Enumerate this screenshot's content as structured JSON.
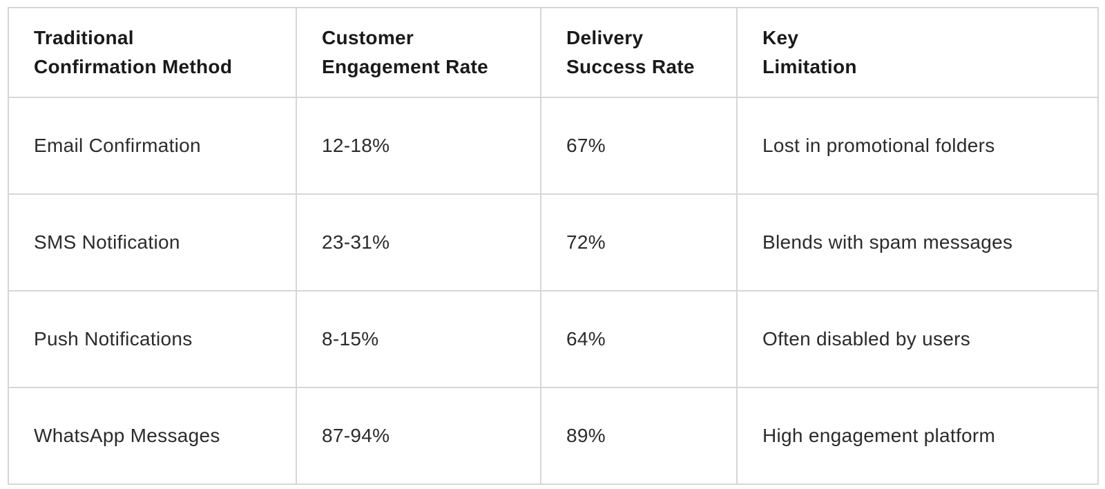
{
  "colors": {
    "background": "#ffffff",
    "outer_border": "#a9a9a9",
    "inner_border": "#d6d6d6",
    "header_text": "#1a1a1a",
    "body_text": "#2b2b2b"
  },
  "table": {
    "columns": [
      "Traditional\nConfirmation Method",
      "Customer\nEngagement Rate",
      "Delivery\nSuccess Rate",
      "Key\nLimitation"
    ],
    "rows": [
      [
        "Email Confirmation",
        "12-18%",
        "67%",
        "Lost in promotional folders"
      ],
      [
        "SMS Notification",
        "23-31%",
        "72%",
        "Blends with spam messages"
      ],
      [
        "Push Notifications",
        "8-15%",
        "64%",
        "Often disabled by users"
      ],
      [
        "WhatsApp Messages",
        "87-94%",
        "89%",
        "High engagement platform"
      ]
    ]
  },
  "chart_data": {
    "type": "table",
    "title": "",
    "columns": [
      "Traditional Confirmation Method",
      "Customer Engagement Rate",
      "Delivery Success Rate",
      "Key Limitation"
    ],
    "rows": [
      {
        "method": "Email Confirmation",
        "customer_engagement_rate": "12-18%",
        "delivery_success_rate": "67%",
        "key_limitation": "Lost in promotional folders"
      },
      {
        "method": "SMS Notification",
        "customer_engagement_rate": "23-31%",
        "delivery_success_rate": "72%",
        "key_limitation": "Blends with spam messages"
      },
      {
        "method": "Push Notifications",
        "customer_engagement_rate": "8-15%",
        "delivery_success_rate": "64%",
        "key_limitation": "Often disabled by users"
      },
      {
        "method": "WhatsApp Messages",
        "customer_engagement_rate": "87-94%",
        "delivery_success_rate": "89%",
        "key_limitation": "High engagement platform"
      }
    ]
  }
}
